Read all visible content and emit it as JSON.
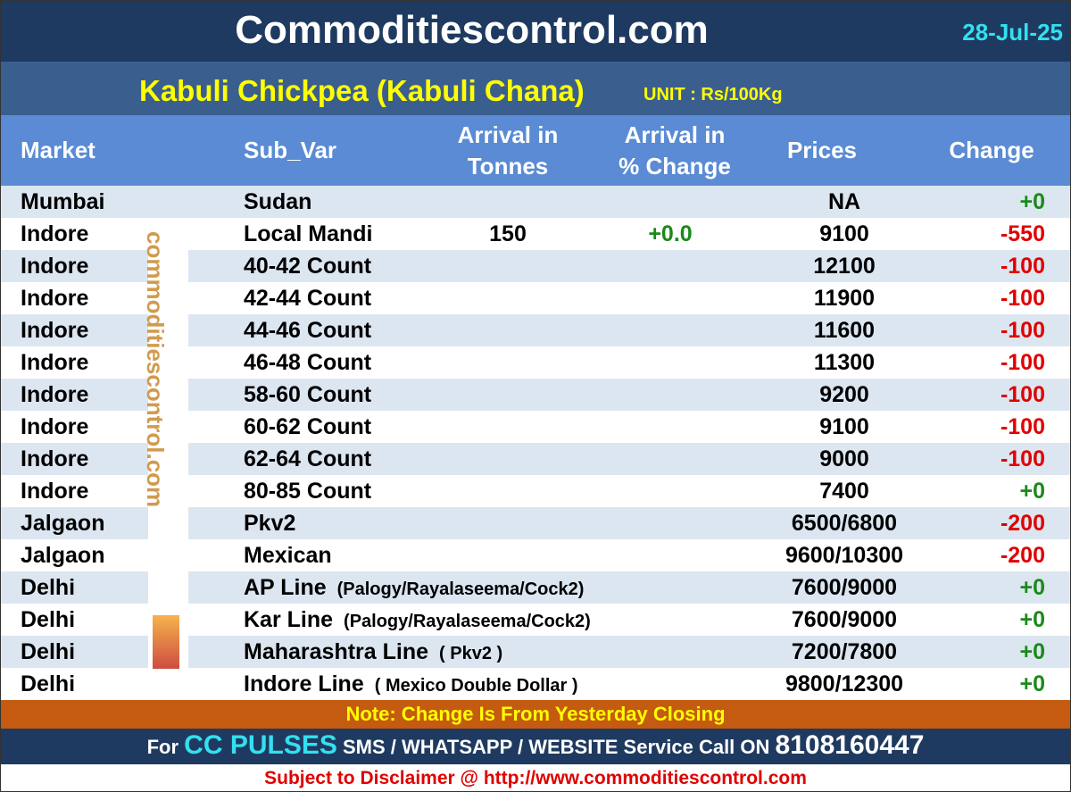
{
  "header": {
    "title": "Commoditiescontrol.com",
    "date": "28-Jul-25"
  },
  "subheader": {
    "title": "Kabuli Chickpea (Kabuli Chana)",
    "unit": "UNIT : Rs/100Kg"
  },
  "table": {
    "columns": [
      [
        "Market"
      ],
      [
        "Sub_Var"
      ],
      [
        "Arrival in",
        "Tonnes"
      ],
      [
        "Arrival  in",
        "% Change"
      ],
      [
        "Prices"
      ],
      [
        "Change"
      ]
    ],
    "rows": [
      {
        "market": "Mumbai",
        "sub_var": "Sudan",
        "note": null,
        "arrival": null,
        "arrival_change": null,
        "price": "NA",
        "change": "+0"
      },
      {
        "market": "Indore",
        "sub_var": "Local Mandi",
        "note": null,
        "arrival": "150",
        "arrival_change": "+0.0",
        "price": "9100",
        "change": "-550"
      },
      {
        "market": "Indore",
        "sub_var": "40-42 Count",
        "note": null,
        "arrival": null,
        "arrival_change": null,
        "price": "12100",
        "change": "-100"
      },
      {
        "market": "Indore",
        "sub_var": "42-44 Count",
        "note": null,
        "arrival": null,
        "arrival_change": null,
        "price": "11900",
        "change": "-100"
      },
      {
        "market": "Indore",
        "sub_var": "44-46 Count",
        "note": null,
        "arrival": null,
        "arrival_change": null,
        "price": "11600",
        "change": "-100"
      },
      {
        "market": "Indore",
        "sub_var": "46-48 Count",
        "note": null,
        "arrival": null,
        "arrival_change": null,
        "price": "11300",
        "change": "-100"
      },
      {
        "market": "Indore",
        "sub_var": "58-60 Count",
        "note": null,
        "arrival": null,
        "arrival_change": null,
        "price": "9200",
        "change": "-100"
      },
      {
        "market": "Indore",
        "sub_var": "60-62 Count",
        "note": null,
        "arrival": null,
        "arrival_change": null,
        "price": "9100",
        "change": "-100"
      },
      {
        "market": "Indore",
        "sub_var": "62-64 Count",
        "note": null,
        "arrival": null,
        "arrival_change": null,
        "price": "9000",
        "change": "-100"
      },
      {
        "market": "Indore",
        "sub_var": "80-85 Count",
        "note": null,
        "arrival": null,
        "arrival_change": null,
        "price": "7400",
        "change": "+0"
      },
      {
        "market": "Jalgaon",
        "sub_var": "Pkv2",
        "note": null,
        "arrival": null,
        "arrival_change": null,
        "price": "6500/6800",
        "change": "-200"
      },
      {
        "market": "Jalgaon",
        "sub_var": "Mexican",
        "note": null,
        "arrival": null,
        "arrival_change": null,
        "price": "9600/10300",
        "change": "-200"
      },
      {
        "market": "Delhi",
        "sub_var": "AP Line",
        "note": "(Palogy/Rayalaseema/Cock2)",
        "arrival": null,
        "arrival_change": null,
        "price": "7600/9000",
        "change": "+0"
      },
      {
        "market": "Delhi",
        "sub_var": "Kar Line",
        "note": "(Palogy/Rayalaseema/Cock2)",
        "arrival": null,
        "arrival_change": null,
        "price": "7600/9000",
        "change": "+0"
      },
      {
        "market": "Delhi",
        "sub_var": "Maharashtra Line",
        "note": "( Pkv2 )",
        "arrival": null,
        "arrival_change": null,
        "price": "7200/7800",
        "change": "+0"
      },
      {
        "market": "Delhi",
        "sub_var": "Indore Line",
        "note": "( Mexico Double Dollar )",
        "arrival": null,
        "arrival_change": null,
        "price": "9800/12300",
        "change": "+0"
      }
    ]
  },
  "watermark": "commoditiescontrol.com",
  "note": "Note: Change Is From Yesterday Closing",
  "footer": {
    "prefix": "For",
    "brand": "CC PULSES",
    "service": "SMS / WHATSAPP / WEBSITE Service Call  ON",
    "phone": "8108160447"
  },
  "disclaimer": "Subject to Disclaimer @  http://www.commoditiescontrol.com"
}
